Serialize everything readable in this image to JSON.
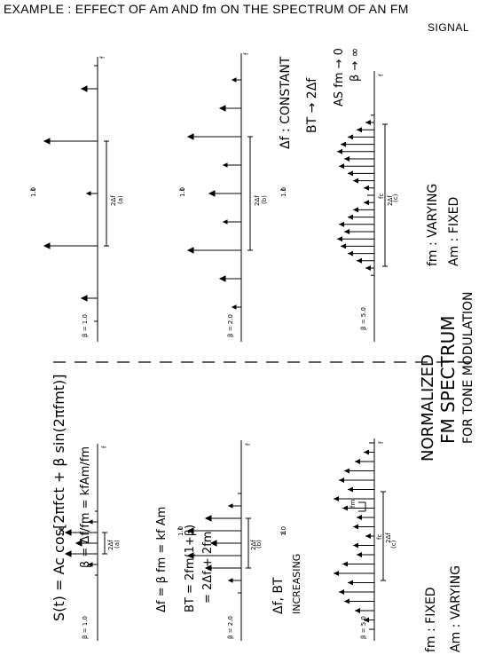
{
  "title": "EXAMPLE : EFFECT OF Am AND fm ON THE SPECTRUM OF AN FM",
  "title_line2": "SIGNAL",
  "equations": {
    "signal": "S(t) = Ac cos[2πfct + β sin(2πfmt)]",
    "beta": "β = Δf/fm = kfAm/fm",
    "delta_f": "Δf = β fm = kf Am",
    "bandwidth": "BT = 2fm(1+β)",
    "bandwidth_2": "= 2Δf + 2fm"
  },
  "left_group": {
    "trend_1": "Δf, BT",
    "trend_2": "INCREASING",
    "cond_1": "fm : FIXED",
    "cond_2": "Am : VARYING",
    "panels": [
      {
        "beta_label": "β = 1.0",
        "sub": "(a)",
        "width_label": "2Δf",
        "peak_label": "1.0",
        "axis_label": "f"
      },
      {
        "beta_label": "β = 2.0",
        "sub": "(b)",
        "width_label": "2Δf",
        "peak_label": "1.0",
        "axis_label": "f"
      },
      {
        "beta_label": "β = 5.0",
        "sub": "(c)",
        "width_label": "2Δf",
        "peak_label": "1.0",
        "axis_label": "f",
        "fc_label": "fc",
        "fm_label": "fm"
      }
    ]
  },
  "right_group": {
    "note_1": "Δf : CONSTANT",
    "note_2": "BT → 2Δf",
    "note_3": "AS fm → 0",
    "note_4": "β → ∞",
    "cond_1": "fm : VARYING",
    "cond_2": "Am : FIXED",
    "panels": [
      {
        "beta_label": "β = 1.0",
        "sub": "(a)",
        "width_label": "2Δf",
        "peak_label": "1.0",
        "axis_label": "f"
      },
      {
        "beta_label": "β = 2.0",
        "sub": "(b)",
        "width_label": "2Δf",
        "peak_label": "1.0",
        "axis_label": "f"
      },
      {
        "beta_label": "β = 5.0",
        "sub": "(c)",
        "width_label": "2Δf",
        "peak_label": "1.0",
        "axis_label": "f",
        "fc_label": "fc"
      }
    ]
  },
  "center_caption": {
    "line_1": "NORMALIZED",
    "line_2": "FM SPECTRUM",
    "line_3": "FOR TONE MODULATION"
  }
}
